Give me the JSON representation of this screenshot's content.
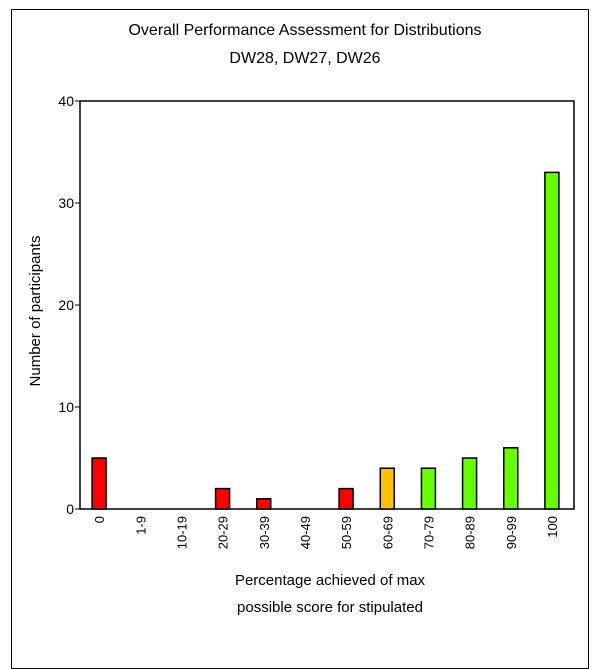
{
  "chart_data": {
    "type": "bar",
    "title": "Overall Performance Assessment for Distributions",
    "subtitle": "DW28, DW27, DW26",
    "xlabel": [
      "Percentage achieved of max",
      "possible score for stipulated"
    ],
    "ylabel": "Number of participants",
    "ylim": [
      0,
      40
    ],
    "yticks": [
      0,
      10,
      20,
      30,
      40
    ],
    "grid": false,
    "categories": [
      "0",
      "1-9",
      "10-19",
      "20-29",
      "30-39",
      "40-49",
      "50-59",
      "60-69",
      "70-79",
      "80-89",
      "90-99",
      "100"
    ],
    "values": [
      5,
      0,
      0,
      2,
      1,
      0,
      2,
      4,
      4,
      5,
      6,
      33
    ],
    "bar_colors": [
      "#ff0000",
      "#ff0000",
      "#ff0000",
      "#ff0000",
      "#ff0000",
      "#ff0000",
      "#ff0000",
      "#ffc000",
      "#66ff00",
      "#66ff00",
      "#66ff00",
      "#66ff00"
    ]
  }
}
